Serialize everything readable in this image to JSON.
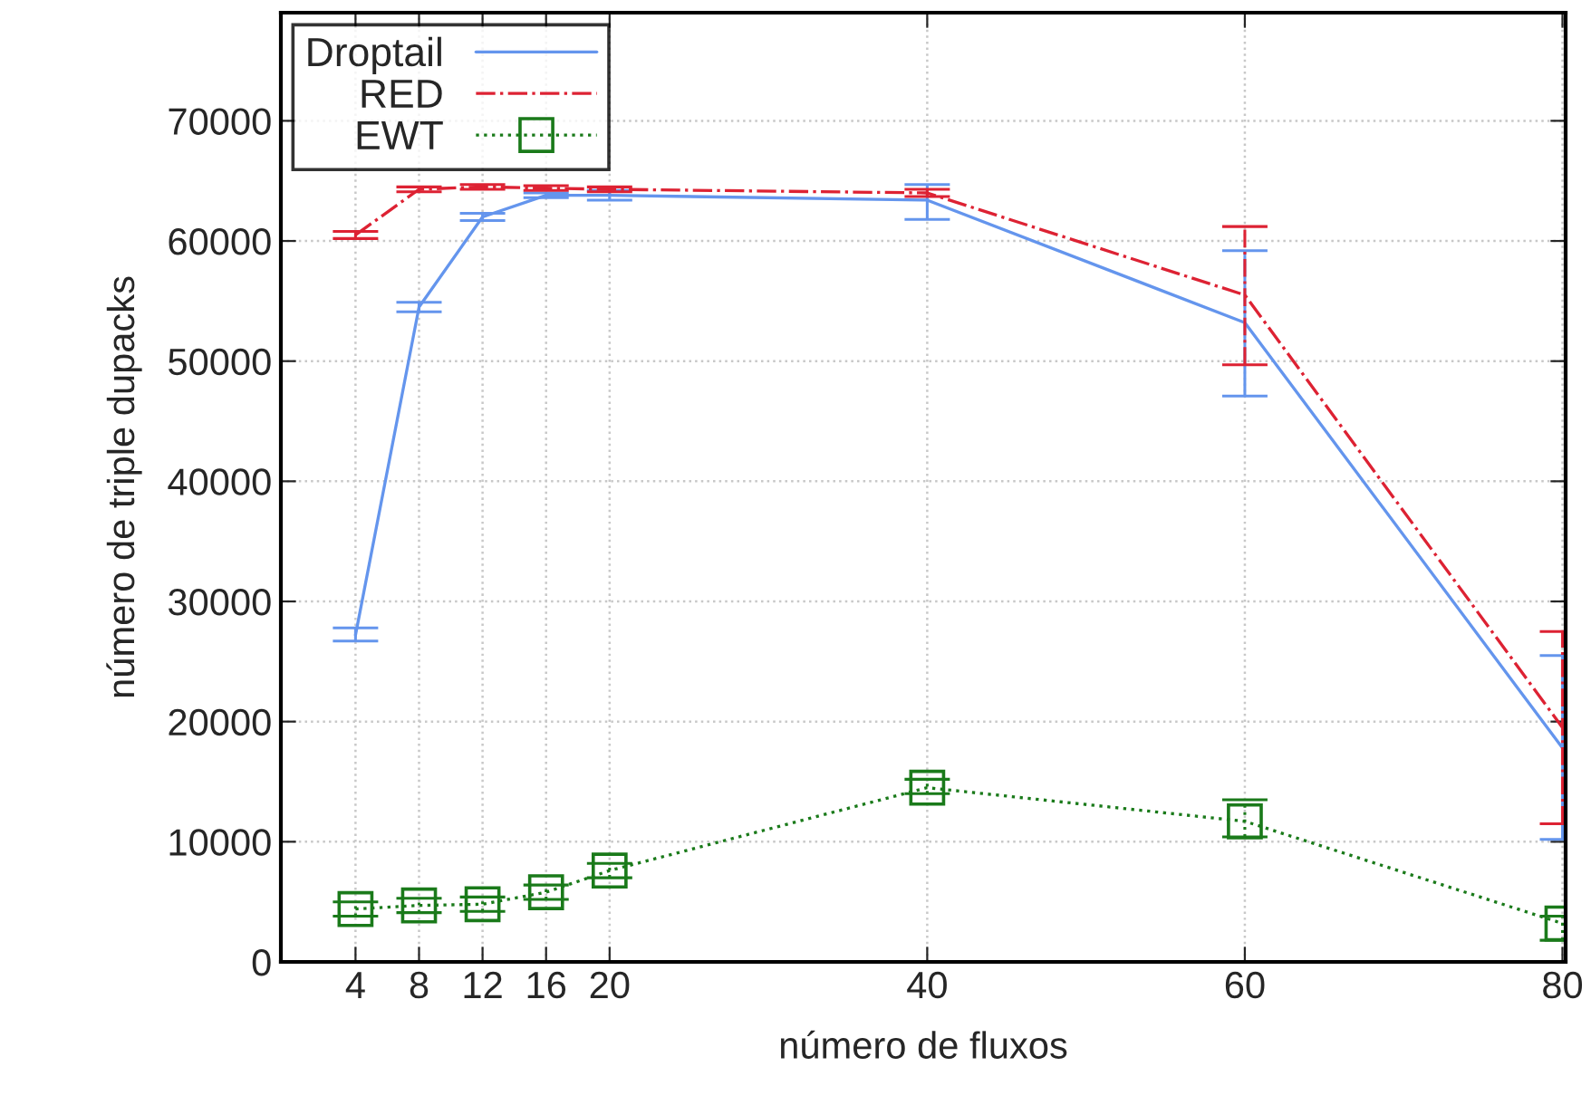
{
  "chart_data": {
    "type": "line",
    "xlabel": "número de fluxos",
    "ylabel": "número de triple dupacks",
    "x": [
      4,
      8,
      12,
      16,
      20,
      40,
      60,
      80
    ],
    "series": [
      {
        "name": "Droptail",
        "color": "#6495ed",
        "line_style": "solid",
        "marker": "none",
        "values": [
          27200,
          54500,
          62000,
          63800,
          63800,
          63400,
          53200,
          17800
        ],
        "errors": [
          [
            26700,
            27800
          ],
          [
            54100,
            54900
          ],
          [
            61700,
            62300
          ],
          [
            63600,
            64000
          ],
          [
            63400,
            64200
          ],
          [
            61800,
            64700
          ],
          [
            47100,
            59200
          ],
          [
            10200,
            25500
          ]
        ]
      },
      {
        "name": "RED",
        "color": "#dd2233",
        "line_style": "dashdot",
        "marker": "none",
        "values": [
          60500,
          64300,
          64500,
          64400,
          64300,
          64000,
          55500,
          19500
        ],
        "errors": [
          [
            60200,
            60800
          ],
          [
            64100,
            64500
          ],
          [
            64300,
            64700
          ],
          [
            64200,
            64600
          ],
          [
            64100,
            64500
          ],
          [
            63700,
            64300
          ],
          [
            49700,
            61200
          ],
          [
            11500,
            27500
          ]
        ]
      },
      {
        "name": "EWT",
        "color": "#1a7a1a",
        "line_style": "dotted",
        "marker": "square",
        "values": [
          4400,
          4700,
          4800,
          5800,
          7600,
          14500,
          11700,
          3200
        ],
        "errors": [
          [
            3800,
            5000
          ],
          [
            4100,
            5300
          ],
          [
            4200,
            5400
          ],
          [
            5200,
            6400
          ],
          [
            7000,
            8200
          ],
          [
            14000,
            15200
          ],
          [
            10400,
            13500
          ],
          [
            1800,
            3800
          ]
        ]
      }
    ],
    "xlim": [
      -0.7,
      80.2
    ],
    "xticks": [
      4,
      8,
      12,
      16,
      20,
      40,
      60,
      80
    ],
    "ylim": [
      0,
      79000
    ],
    "yticks": [
      0,
      10000,
      20000,
      30000,
      40000,
      50000,
      60000,
      70000
    ],
    "grid": true,
    "legend": "top left"
  }
}
